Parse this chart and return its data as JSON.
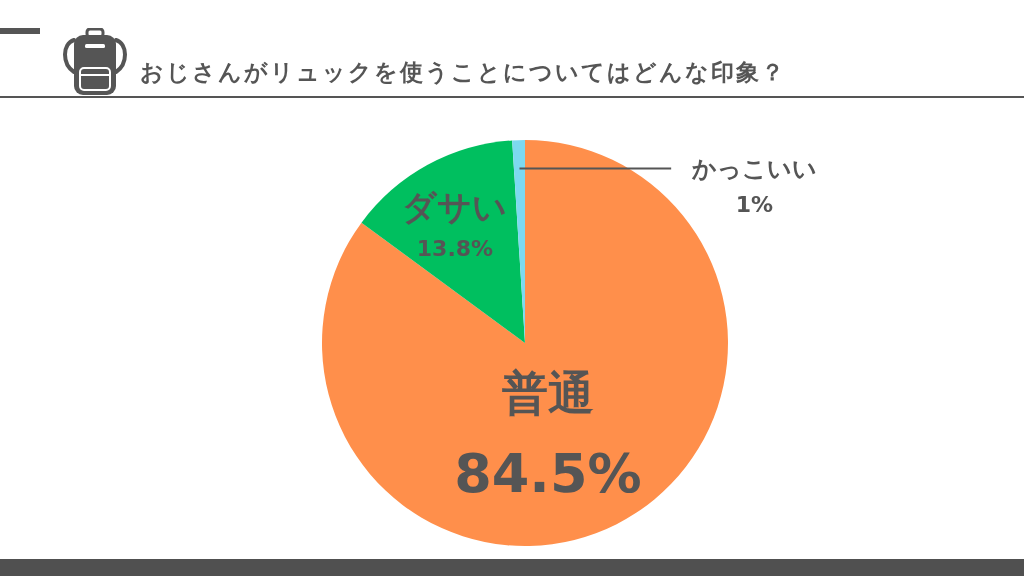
{
  "chart_data": {
    "type": "pie",
    "title": "おじさんがリュックを使うことについてはどんな印象？",
    "categories": [
      "普通",
      "ダサい",
      "かっこいい"
    ],
    "values": [
      84.5,
      13.8,
      1
    ],
    "colors": [
      "#ff8f4b",
      "#00bf5f",
      "#7dd9f0"
    ],
    "value_labels": [
      "84.5%",
      "13.8%",
      "1%"
    ]
  }
}
